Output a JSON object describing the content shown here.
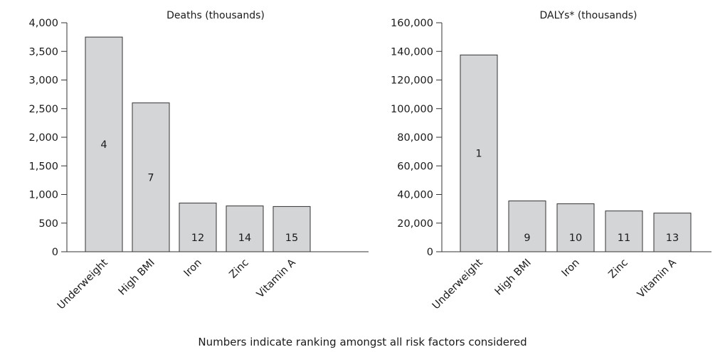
{
  "chart_data": [
    {
      "type": "bar",
      "title": "Deaths (thousands)",
      "categories": [
        "Underweight",
        "High BMI",
        "Iron",
        "Zinc",
        "Vitamin A"
      ],
      "values": [
        3750,
        2600,
        850,
        800,
        790
      ],
      "data_labels": [
        "4",
        "7",
        "12",
        "14",
        "15"
      ],
      "yticks": [
        "0",
        "500",
        "1,000",
        "1,500",
        "2,000",
        "2,500",
        "3,000",
        "3,500",
        "4,000"
      ],
      "ylim": [
        0,
        4000
      ],
      "bar_color": "#d4d5d7",
      "grid": false,
      "legend": "none"
    },
    {
      "type": "bar",
      "title": "DALYs* (thousands)",
      "categories": [
        "Underweight",
        "High BMI",
        "Iron",
        "Zinc",
        "Vitamin A"
      ],
      "values": [
        137500,
        35500,
        33500,
        28500,
        27000
      ],
      "data_labels": [
        "1",
        "9",
        "10",
        "11",
        "13"
      ],
      "yticks": [
        "0",
        "20,000",
        "40,000",
        "60,000",
        "80,000",
        "100,000",
        "120,000",
        "140,000",
        "160,000"
      ],
      "ylim": [
        0,
        160000
      ],
      "bar_color": "#d4d5d7",
      "grid": false,
      "legend": "none"
    }
  ],
  "footnote": "Numbers indicate ranking amongst all risk factors considered"
}
